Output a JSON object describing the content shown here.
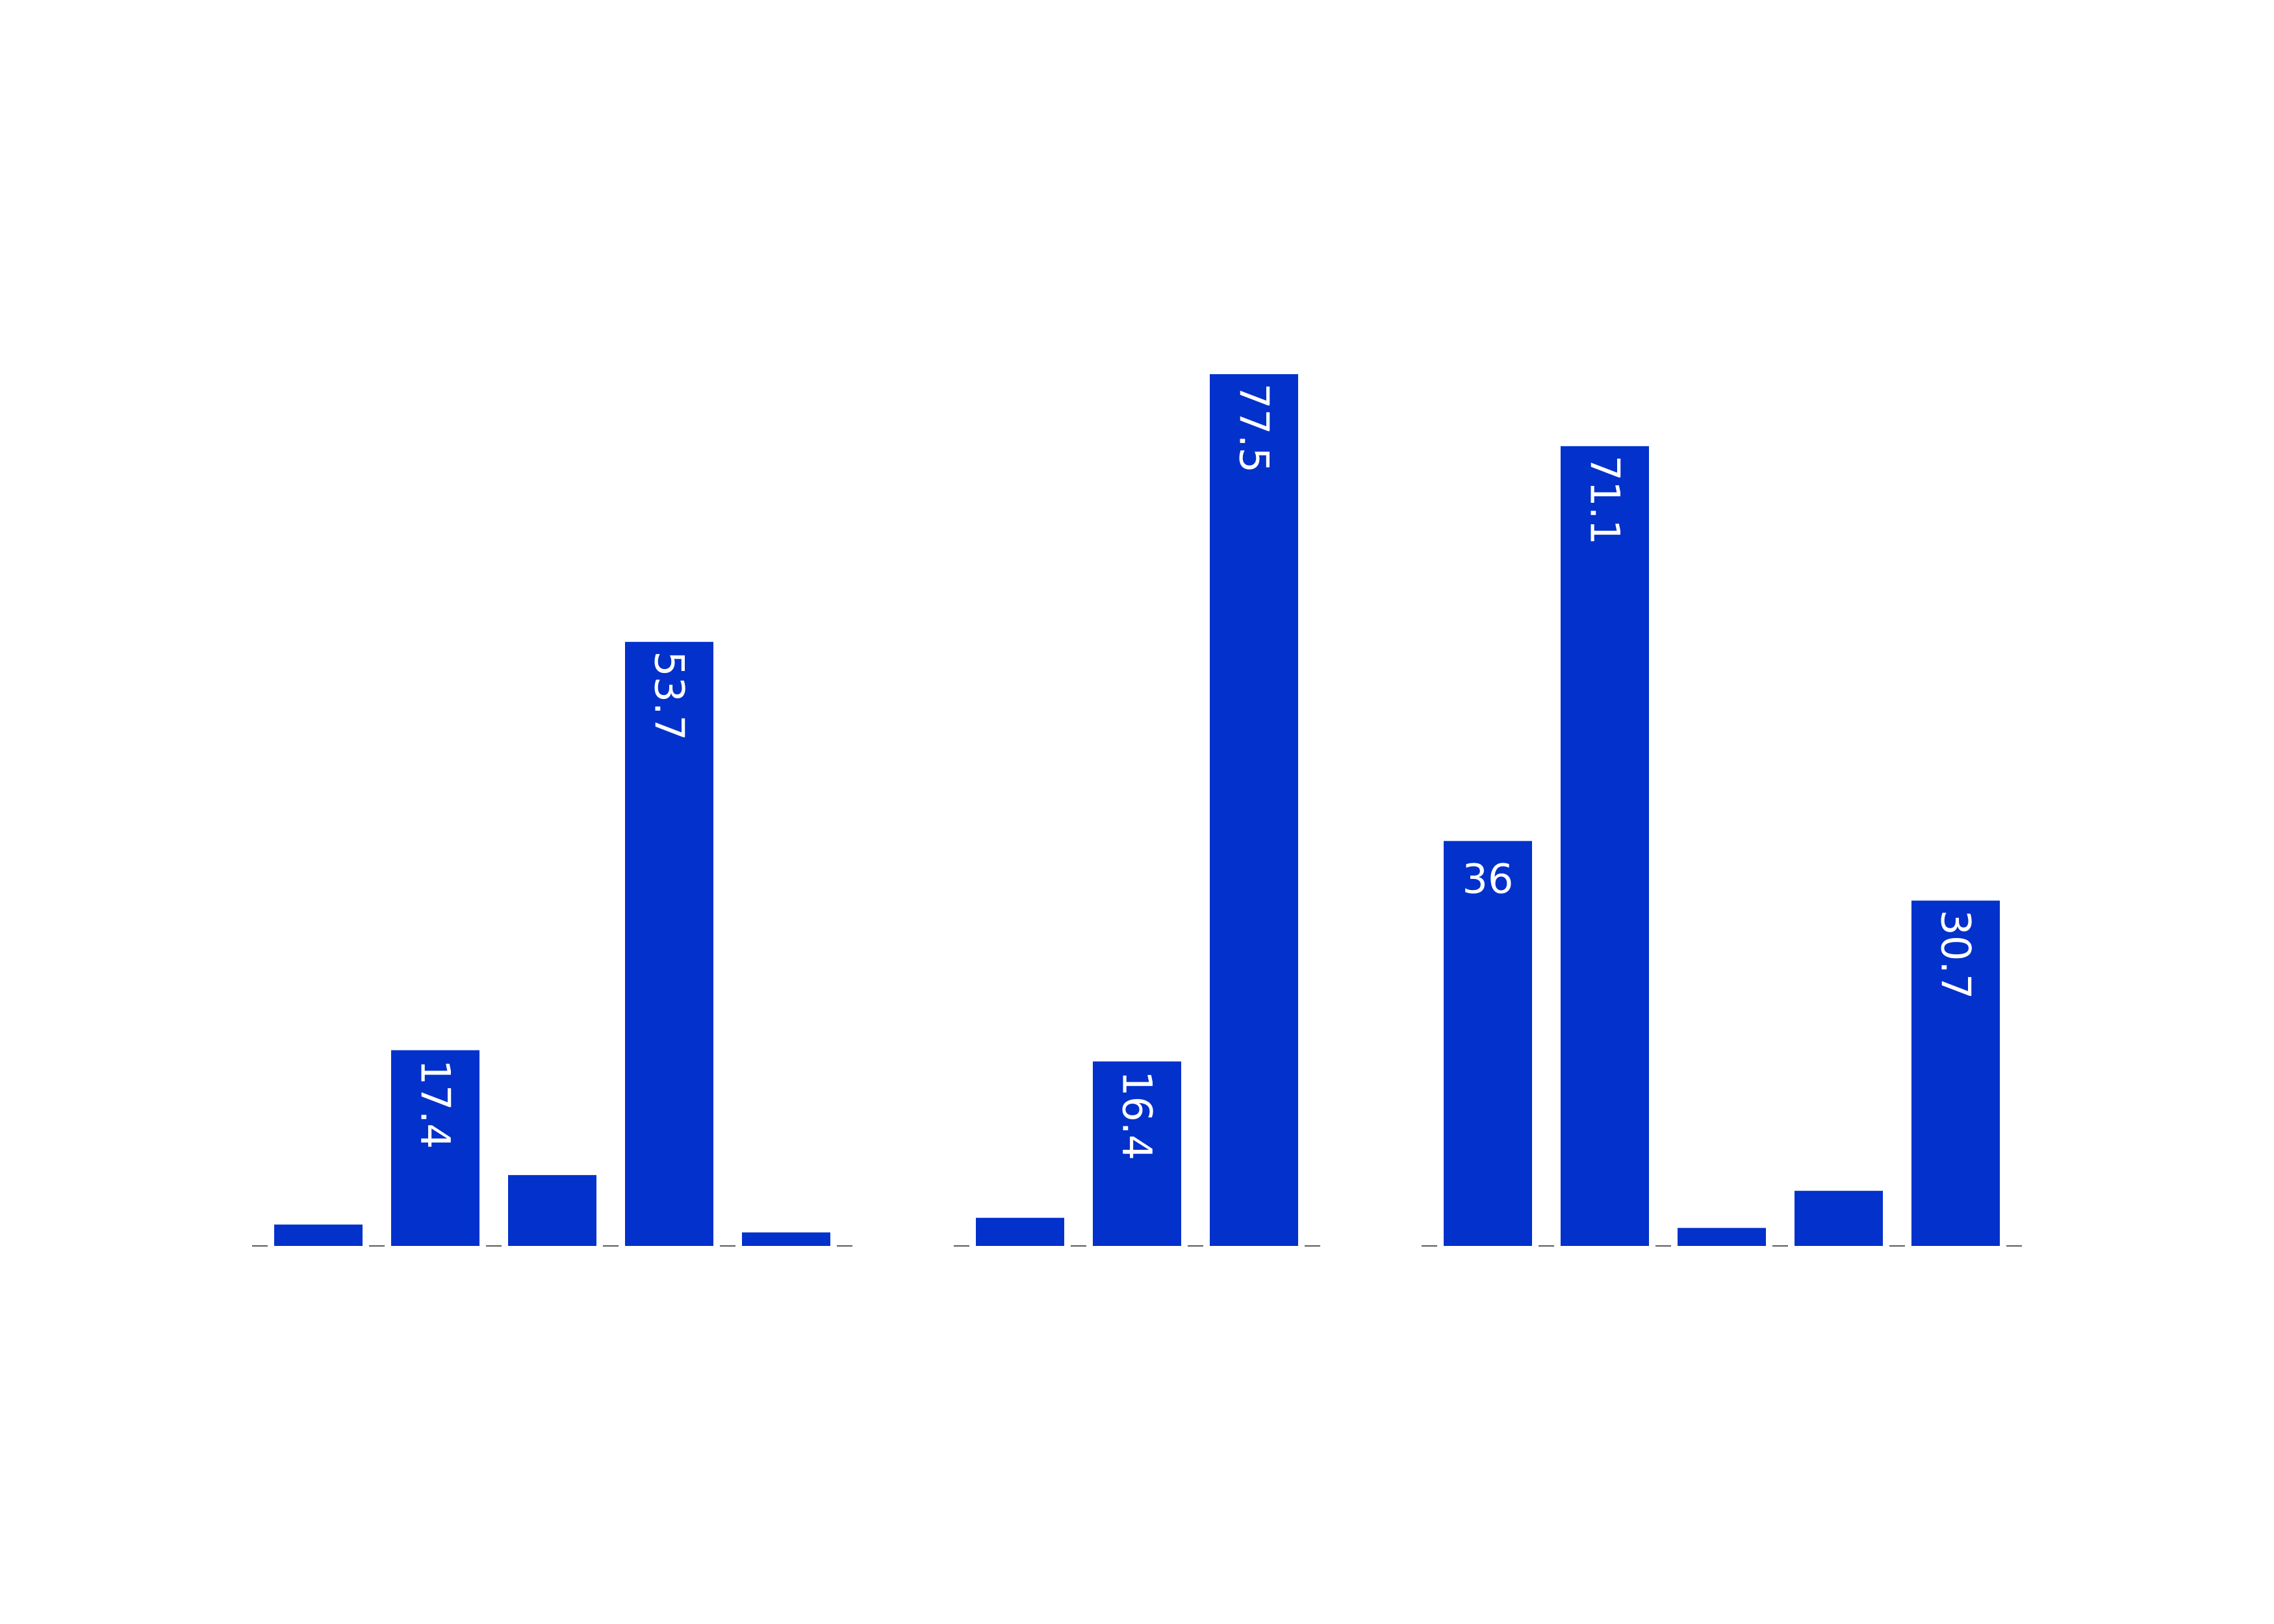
{
  "chart_data": {
    "type": "bar",
    "bar_color": "#0231cc",
    "label_color": "#ffffff",
    "baseline_color": "#595959",
    "background": "#ffffff",
    "ylim": [
      0,
      100
    ],
    "grid": false,
    "legend": "none",
    "groups": [
      {
        "bars": [
          {
            "value": 1.9,
            "label": ""
          },
          {
            "value": 17.4,
            "label": "17.4",
            "label_orientation": "vertical"
          },
          {
            "value": 6.3,
            "label": ""
          },
          {
            "value": 53.7,
            "label": "53.7",
            "label_orientation": "vertical"
          },
          {
            "value": 1.2,
            "label": ""
          }
        ]
      },
      {
        "bars": [
          {
            "value": 2.5,
            "label": ""
          },
          {
            "value": 16.4,
            "label": "16.4",
            "label_orientation": "vertical"
          },
          {
            "value": 77.5,
            "label": "77.5",
            "label_orientation": "vertical"
          }
        ]
      },
      {
        "bars": [
          {
            "value": 36,
            "label": "36",
            "label_orientation": "horizontal"
          },
          {
            "value": 71.1,
            "label": "71.1",
            "label_orientation": "vertical"
          },
          {
            "value": 1.6,
            "label": ""
          },
          {
            "value": 4.9,
            "label": ""
          },
          {
            "value": 30.7,
            "label": "30.7",
            "label_orientation": "vertical"
          }
        ]
      }
    ]
  }
}
